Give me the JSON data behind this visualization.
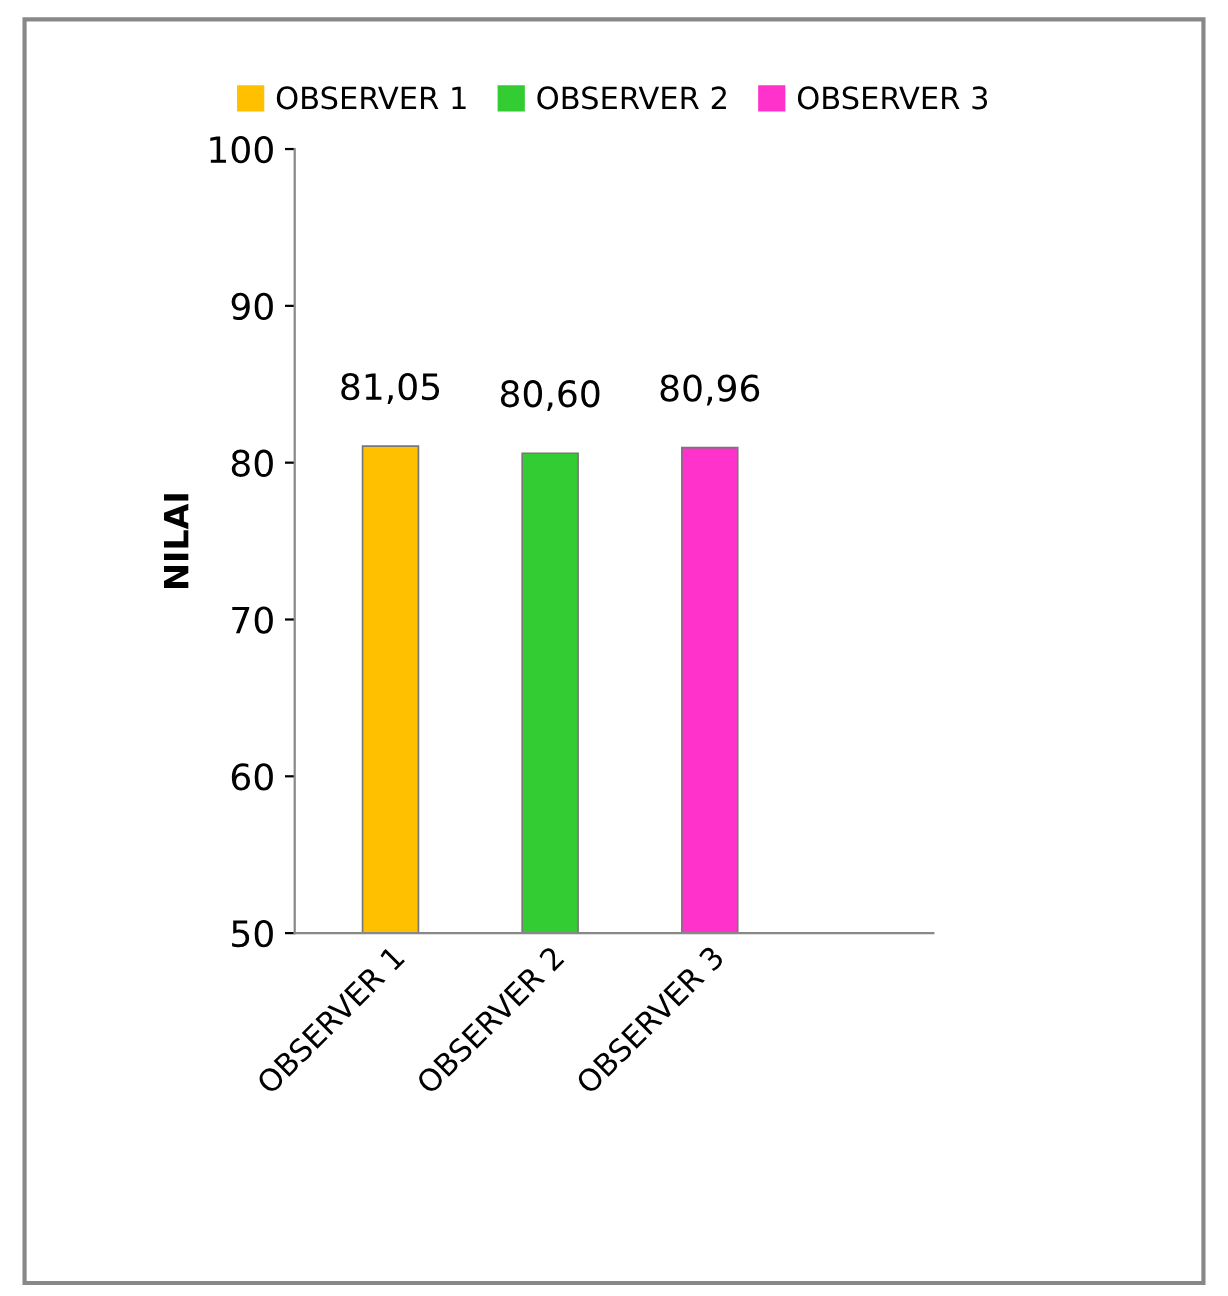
{
  "chart_data": {
    "type": "bar",
    "ylabel": "NILAI",
    "categories": [
      "OBSERVER 1",
      "OBSERVER 2",
      "OBSERVER 3"
    ],
    "series": [
      {
        "name": "OBSERVER 1",
        "color": "#ffc000",
        "values": [
          81.05,
          null,
          null
        ],
        "value_labels": [
          "81,05",
          null,
          null
        ]
      },
      {
        "name": "OBSERVER 2",
        "color": "#33cc33",
        "values": [
          null,
          80.6,
          null
        ],
        "value_labels": [
          null,
          "80,60",
          null
        ]
      },
      {
        "name": "OBSERVER 3",
        "color": "#ff33cc",
        "values": [
          null,
          null,
          80.96
        ],
        "value_labels": [
          null,
          null,
          "80,96"
        ]
      }
    ],
    "ylim": [
      50,
      100
    ],
    "yticks": [
      50,
      60,
      70,
      80,
      90,
      100
    ],
    "grid": false,
    "legend": "top"
  }
}
